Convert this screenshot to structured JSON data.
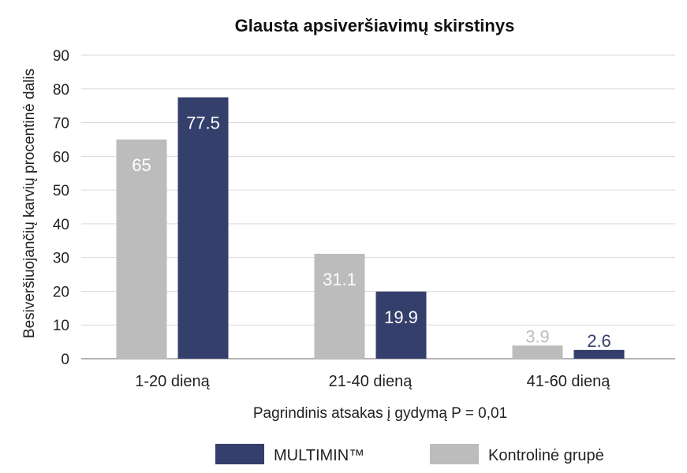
{
  "chart_data": {
    "type": "bar",
    "title": "Glausta apsiveršiavimų skirstinys",
    "xlabel": "Pagrindinis atsakas į gydymą P = 0,01",
    "ylabel": "Besiveršiuojančių karvių procentinė dalis",
    "ylim": [
      0,
      90
    ],
    "yticks": [
      0,
      10,
      20,
      30,
      40,
      50,
      60,
      70,
      80,
      90
    ],
    "grid": true,
    "legend_position": "bottom",
    "categories": [
      "1-20 dieną",
      "21-40 dieną",
      "41-60 dieną"
    ],
    "series": [
      {
        "name": "Kontrolinė grupė",
        "color": "#bcbcbc",
        "values": [
          65,
          31.1,
          3.9
        ],
        "labels": [
          "65",
          "31.1",
          "3.9"
        ]
      },
      {
        "name": "MULTIMIN™",
        "color": "#343f6b",
        "values": [
          77.5,
          19.9,
          2.6
        ],
        "labels": [
          "77.5",
          "19.9",
          "2.6"
        ]
      }
    ],
    "legend_order": [
      1,
      0
    ]
  }
}
